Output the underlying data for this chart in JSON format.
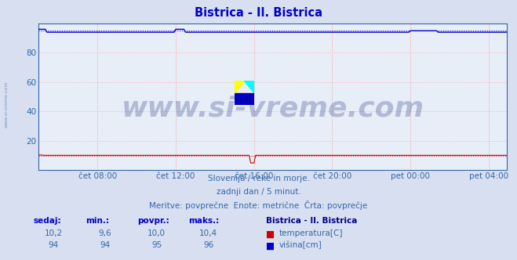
{
  "title": "Bistrica - Il. Bistrica",
  "title_color": "#0000cc",
  "bg_color": "#d8dff0",
  "plot_bg_color": "#e8eef8",
  "grid_color": "#ffaaaa",
  "grid_linestyle": ":",
  "xlim": [
    0,
    287
  ],
  "ylim": [
    0,
    100
  ],
  "yticks": [
    20,
    40,
    60,
    80
  ],
  "xtick_labels": [
    "čet 08:00",
    "čet 12:00",
    "čet 16:00",
    "čet 20:00",
    "pet 00:00",
    "pet 04:00"
  ],
  "xtick_positions": [
    36,
    84,
    132,
    180,
    228,
    276
  ],
  "temp_color": "#cc0000",
  "height_color": "#0000cc",
  "watermark_text": "www.si-vreme.com",
  "watermark_color": "#334488",
  "watermark_alpha": 0.3,
  "subtitle1": "Slovenija / reke in morje.",
  "subtitle2": "zadnji dan / 5 minut.",
  "subtitle3": "Meritve: povprečne  Enote: metrične  Črta: povprečje",
  "subtitle_color": "#3366aa",
  "legend_title": "Bistrica - Il. Bistrica",
  "legend_title_color": "#000088",
  "legend_items": [
    {
      "label": "temperatura[C]",
      "color": "#cc0000"
    },
    {
      "label": "višina[cm]",
      "color": "#0000cc"
    }
  ],
  "stats_headers": [
    "sedaj:",
    "min.:",
    "povpr.:",
    "maks.:"
  ],
  "stats_temp": [
    "10,2",
    "9,6",
    "10,0",
    "10,4"
  ],
  "stats_height": [
    "94",
    "94",
    "95",
    "96"
  ],
  "stats_color_header": "#0000cc",
  "stats_color_data": "#3366aa",
  "n_points": 288,
  "temp_value": 10.2,
  "height_value": 94.0,
  "height_bump1_end": 5,
  "height_bump1_val": 96.0,
  "height_bump2_start": 84,
  "height_bump2_end": 90,
  "height_bump2_val": 96.0,
  "height_bump3_start": 228,
  "height_bump3_end": 245,
  "height_bump3_val": 95.0,
  "temp_avg": 10.0,
  "height_avg": 95.0,
  "yaxis_label_color": "#3366aa",
  "watermark_fontsize": 26,
  "left_label_color": "#3366aa",
  "spine_color": "#3366aa"
}
